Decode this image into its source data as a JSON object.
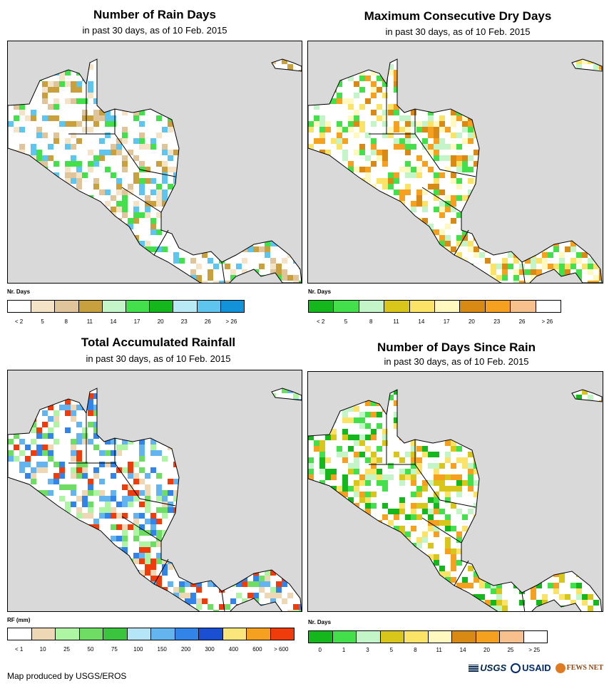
{
  "panels": [
    {
      "title": "Number of Rain Days",
      "subtitle": "in past 30 days, as of 10 Feb. 2015",
      "legend_title": "Nr. Days",
      "legend_colors": [
        "#ffffff",
        "#f5e3c7",
        "#e0c49a",
        "#c9a03e",
        "#c3f5c8",
        "#44e04c",
        "#15b81c",
        "#b7eaf5",
        "#5ec5ee",
        "#1292d8"
      ],
      "legend_ticks": [
        "< 2",
        "5",
        "8",
        "11",
        "14",
        "17",
        "20",
        "23",
        "26",
        "> 26"
      ],
      "palette_key": [
        "#ffffff",
        "#ffffff",
        "#f5e3c7",
        "#e0c49a",
        "#c9a03e",
        "#44e04c",
        "#5ec5ee"
      ]
    },
    {
      "title": "Maximum Consecutive Dry Days",
      "subtitle": "in past 30 days, as of 10 Feb. 2015",
      "legend_title": "Nr. Days",
      "legend_colors": [
        "#15b81c",
        "#44e04c",
        "#c3f5c8",
        "#d9c61a",
        "#fae366",
        "#fff9c0",
        "#d98a14",
        "#f5a01e",
        "#f7c08c",
        "#ffffff"
      ],
      "legend_ticks": [
        "< 2",
        "5",
        "8",
        "11",
        "14",
        "17",
        "20",
        "23",
        "26",
        "> 26"
      ],
      "palette_key": [
        "#ffffff",
        "#fff9c0",
        "#fae366",
        "#f5a01e",
        "#d98a14",
        "#c3f5c8",
        "#44e04c"
      ]
    },
    {
      "title": "Total Accumulated Rainfall",
      "subtitle": "in past 30 days, as of 10 Feb. 2015",
      "legend_title": "RF (mm)",
      "legend_colors": [
        "#ffffff",
        "#eed7b4",
        "#adf5a2",
        "#6fdc64",
        "#3bc43d",
        "#b5e6f7",
        "#64b5ef",
        "#3284e8",
        "#1a4fd4",
        "#fae67a",
        "#f5a01e",
        "#f03c0a"
      ],
      "legend_ticks": [
        "< 1",
        "10",
        "25",
        "50",
        "75",
        "100",
        "150",
        "200",
        "300",
        "400",
        "600",
        "> 600"
      ],
      "palette_key": [
        "#ffffff",
        "#eed7b4",
        "#adf5a2",
        "#6fdc64",
        "#64b5ef",
        "#3284e8",
        "#f03c0a"
      ]
    },
    {
      "title": "Number of Days Since Rain",
      "subtitle": "in past 30 days, as of 10 Feb. 2015",
      "legend_title": "Nr. Days",
      "legend_colors": [
        "#15b81c",
        "#44e04c",
        "#c3f5c8",
        "#d9c61a",
        "#fae366",
        "#fff9c0",
        "#d98a14",
        "#f5a01e",
        "#f7c08c",
        "#ffffff"
      ],
      "legend_ticks": [
        "0",
        "1",
        "3",
        "5",
        "8",
        "11",
        "14",
        "20",
        "25",
        "> 25"
      ],
      "palette_key": [
        "#ffffff",
        "#c3f5c8",
        "#44e04c",
        "#15b81c",
        "#f5a01e",
        "#d9c61a",
        "#fae366"
      ]
    }
  ],
  "footer": {
    "credit": "Map produced by USGS/EROS"
  },
  "logos": [
    "USGS",
    "USAID",
    "FEWS NET"
  ],
  "map_colors": {
    "ocean": "#d9d9d9",
    "land": "#ffffff",
    "border": "#000000"
  }
}
